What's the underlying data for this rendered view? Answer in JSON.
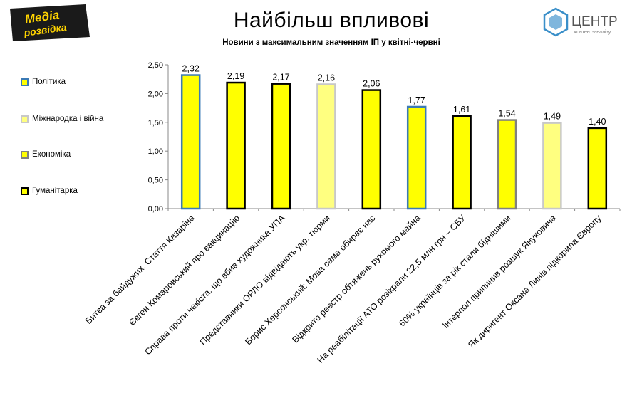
{
  "header": {
    "title": "Найбільш впливові",
    "subtitle": "Новини з максимальним значенням ІП у квітні-червні",
    "logo_left": [
      "Медіа",
      "розвідка"
    ],
    "logo_right": "ЦЕНТР",
    "logo_right_sub": "контент-аналізу"
  },
  "legend": {
    "items": [
      {
        "label": "Політика",
        "fill": "#ffff00",
        "stroke": "#3b7ab5"
      },
      {
        "label": "Міжнародка і війна",
        "fill": "#ffff80",
        "stroke": "#c8c8c8"
      },
      {
        "label": "Економіка",
        "fill": "#ffff00",
        "stroke": "#808080"
      },
      {
        "label": "Гуманітарка",
        "fill": "#ffff00",
        "stroke": "#000000"
      }
    ]
  },
  "chart_data": {
    "type": "bar",
    "title": "Найбільш впливові",
    "subtitle": "Новини з максимальним значенням ІП у квітні-червні",
    "ylim": [
      0,
      2.5
    ],
    "yticks": [
      "0,00",
      "0,50",
      "1,00",
      "1,50",
      "2,00",
      "2,50"
    ],
    "grid": false,
    "legend_position": "left",
    "categories": [
      "Битва за байдужих. Стаття Казаріна",
      "Євген Комаровський про вакцинацію",
      "Справа проти чекіста, що вбив художника УПА",
      "Представники ОРЛО відвідають укр. тюрми",
      "Борис Херсонський: Мова сама обирає нас",
      "Відкрито реєстр обтяжень рухомого майна",
      "На реабілітації АТО розікрали 22,5 млн грн – СБУ",
      "60% українців за рік стали біднішими",
      "Інтерпол припинив розшук Януковича",
      "Як диригент Оксана Линів підкорила Європу"
    ],
    "values": [
      2.32,
      2.19,
      2.17,
      2.16,
      2.06,
      1.77,
      1.61,
      1.54,
      1.49,
      1.4
    ],
    "value_labels": [
      "2,32",
      "2,19",
      "2,17",
      "2,16",
      "2,06",
      "1,77",
      "1,61",
      "1,54",
      "1,49",
      "1,40"
    ],
    "category_types": [
      "Політика",
      "Гуманітарка",
      "Гуманітарка",
      "Міжнародка і війна",
      "Гуманітарка",
      "Політика",
      "Гуманітарка",
      "Економіка",
      "Міжнародка і війна",
      "Гуманітарка"
    ]
  }
}
